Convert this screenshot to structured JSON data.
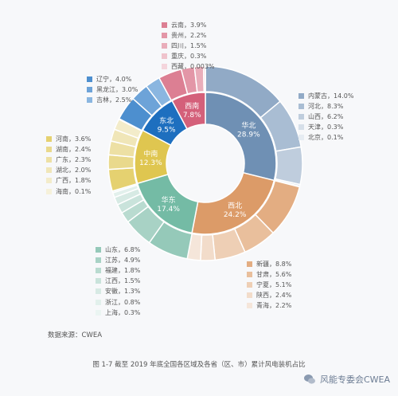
{
  "chart_data": {
    "type": "donut",
    "inner_ring": [
      {
        "region": "华北",
        "value": 28.9,
        "label": "28.9%",
        "color": "#6f90b4"
      },
      {
        "region": "西北",
        "value": 24.2,
        "label": "24.2%",
        "color": "#dc9b68"
      },
      {
        "region": "华东",
        "value": 17.4,
        "label": "17.4%",
        "color": "#74bba5"
      },
      {
        "region": "中南",
        "value": 12.3,
        "label": "12.3%",
        "color": "#dfc650"
      },
      {
        "region": "东北",
        "value": 9.5,
        "label": "9.5%",
        "color": "#1e6fbf"
      },
      {
        "region": "西南",
        "value": 7.8,
        "label": "7.8%",
        "color": "#d4607a"
      }
    ],
    "outer_ring": [
      {
        "name": "内蒙古",
        "value": 14.0,
        "label": "14.0%",
        "region": "华北"
      },
      {
        "name": "河北",
        "value": 8.3,
        "label": "8.3%",
        "region": "华北"
      },
      {
        "name": "山西",
        "value": 6.2,
        "label": "6.2%",
        "region": "华北"
      },
      {
        "name": "天津",
        "value": 0.3,
        "label": "0.3%",
        "region": "华北"
      },
      {
        "name": "北京",
        "value": 0.1,
        "label": "0.1%",
        "region": "华北"
      },
      {
        "name": "新疆",
        "value": 8.8,
        "label": "8.8%",
        "region": "西北"
      },
      {
        "name": "甘肃",
        "value": 5.6,
        "label": "5.6%",
        "region": "西北"
      },
      {
        "name": "宁夏",
        "value": 5.1,
        "label": "5.1%",
        "region": "西北"
      },
      {
        "name": "陕西",
        "value": 2.4,
        "label": "2.4%",
        "region": "西北"
      },
      {
        "name": "青海",
        "value": 2.2,
        "label": "2.2%",
        "region": "西北"
      },
      {
        "name": "山东",
        "value": 6.8,
        "label": "6.8%",
        "region": "华东"
      },
      {
        "name": "江苏",
        "value": 4.9,
        "label": "4.9%",
        "region": "华东"
      },
      {
        "name": "福建",
        "value": 1.8,
        "label": "1.8%",
        "region": "华东"
      },
      {
        "name": "江西",
        "value": 1.5,
        "label": "1.5%",
        "region": "华东"
      },
      {
        "name": "安徽",
        "value": 1.3,
        "label": "1.3%",
        "region": "华东"
      },
      {
        "name": "浙江",
        "value": 0.8,
        "label": "0.8%",
        "region": "华东"
      },
      {
        "name": "上海",
        "value": 0.3,
        "label": "0.3%",
        "region": "华东"
      },
      {
        "name": "河南",
        "value": 3.6,
        "label": "3.6%",
        "region": "中南"
      },
      {
        "name": "湖南",
        "value": 2.4,
        "label": "2.4%",
        "region": "中南"
      },
      {
        "name": "广东",
        "value": 2.3,
        "label": "2.3%",
        "region": "中南"
      },
      {
        "name": "湖北",
        "value": 2.0,
        "label": "2.0%",
        "region": "中南"
      },
      {
        "name": "广西",
        "value": 1.8,
        "label": "1.8%",
        "region": "中南"
      },
      {
        "name": "海南",
        "value": 0.1,
        "label": "0.1%",
        "region": "中南"
      },
      {
        "name": "辽宁",
        "value": 4.0,
        "label": "4.0%",
        "region": "东北"
      },
      {
        "name": "黑龙江",
        "value": 3.0,
        "label": "3.0%",
        "region": "东北"
      },
      {
        "name": "吉林",
        "value": 2.5,
        "label": "2.5%",
        "region": "东北"
      },
      {
        "name": "云南",
        "value": 3.9,
        "label": "3.9%",
        "region": "西南"
      },
      {
        "name": "贵州",
        "value": 2.2,
        "label": "2.2%",
        "region": "西南"
      },
      {
        "name": "四川",
        "value": 1.5,
        "label": "1.5%",
        "region": "西南"
      },
      {
        "name": "重庆",
        "value": 0.3,
        "label": "0.3%",
        "region": "西南"
      },
      {
        "name": "西藏",
        "value": 0.003,
        "label": "0.003%",
        "region": "西南"
      }
    ],
    "title": "图 1-7 截至 2019 年底全国各区域及各省（区、市）累计风电装机占比",
    "legend_placement": "around"
  },
  "source": "数据来源：CWEA",
  "caption": "图 1-7 截至 2019 年底全国各区域及各省（区、市）累计风电装机占比",
  "watermark": "风能专委会CWEA"
}
